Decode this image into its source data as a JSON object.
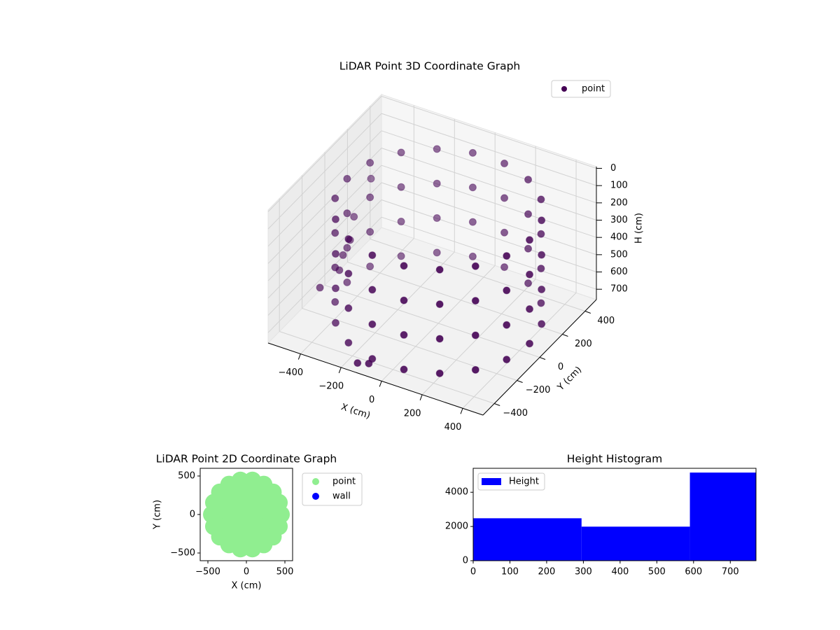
{
  "chart_data": [
    {
      "type": "scatter3d",
      "title": "LiDAR Point 3D Coordinate Graph",
      "xlabel": "X (cm)",
      "ylabel": "Y (cm)",
      "zlabel": "H (cm)",
      "xlim": [
        -560,
        500
      ],
      "ylim": [
        -500,
        500
      ],
      "zlim": [
        760,
        -10
      ],
      "xticks": [
        {
          "value": -400,
          "label": "−400"
        },
        {
          "value": -200,
          "label": "−200"
        },
        0,
        200,
        400
      ],
      "yticks": [
        {
          "value": -400,
          "label": "−400"
        },
        {
          "value": -200,
          "label": "−200"
        },
        0,
        200,
        400
      ],
      "zticks": [
        0,
        100,
        200,
        300,
        400,
        500,
        600,
        700
      ],
      "grid": true,
      "legend": "upper right",
      "series": [
        {
          "name": "point",
          "color": "#440154",
          "x": [
            450,
            423,
            345,
            225,
            78,
            -78,
            -225,
            -345,
            -423,
            -450,
            -423,
            -345,
            -225,
            -78,
            78,
            225,
            345,
            423,
            450,
            423,
            345,
            225,
            78,
            -78,
            -225,
            -345,
            -423,
            -450,
            -423,
            -345,
            -225,
            -78,
            78,
            225,
            345,
            423,
            450,
            423,
            345,
            225,
            78,
            -78,
            -225,
            -345,
            -423,
            -450,
            -423,
            -345,
            -225,
            -78,
            78,
            225,
            345,
            423,
            450,
            423,
            345,
            225,
            78,
            -78,
            -225,
            -345,
            -423,
            -450,
            -423,
            -345,
            -225,
            -78,
            78,
            225,
            345,
            423,
            -500,
            -500,
            -480,
            -470,
            -460,
            -500,
            -130,
            -80
          ],
          "y": [
            0,
            154,
            289,
            390,
            443,
            443,
            390,
            289,
            154,
            0,
            -154,
            -289,
            -390,
            -443,
            -443,
            -390,
            -289,
            -154,
            0,
            154,
            289,
            390,
            443,
            443,
            390,
            289,
            154,
            0,
            -154,
            -289,
            -390,
            -443,
            -443,
            -390,
            -289,
            -154,
            0,
            154,
            289,
            390,
            443,
            443,
            390,
            289,
            154,
            0,
            -154,
            -289,
            -390,
            -443,
            -443,
            -390,
            -289,
            -154,
            0,
            154,
            289,
            390,
            443,
            443,
            390,
            289,
            154,
            0,
            -154,
            -289,
            -390,
            -443,
            -443,
            -390,
            -289,
            -154,
            300,
            150,
            80,
            0,
            -50,
            -150,
            -480,
            -470
          ],
          "z": [
            100,
            100,
            100,
            100,
            100,
            100,
            100,
            100,
            100,
            100,
            100,
            100,
            100,
            100,
            100,
            100,
            100,
            100,
            300,
            300,
            300,
            300,
            300,
            300,
            300,
            300,
            300,
            300,
            300,
            300,
            300,
            300,
            300,
            300,
            300,
            300,
            500,
            500,
            500,
            500,
            500,
            500,
            500,
            500,
            500,
            500,
            500,
            500,
            500,
            500,
            500,
            500,
            500,
            500,
            700,
            700,
            700,
            700,
            700,
            700,
            700,
            700,
            700,
            700,
            700,
            700,
            700,
            700,
            700,
            700,
            700,
            700,
            320,
            440,
            520,
            550,
            600,
            650,
            720,
            710
          ]
        }
      ]
    },
    {
      "type": "scatter",
      "title": "LiDAR Point 2D Coordinate Graph",
      "xlabel": "X (cm)",
      "ylabel": "Y (cm)",
      "xlim": [
        -600,
        600
      ],
      "ylim": [
        -600,
        600
      ],
      "xticks": [
        {
          "value": -500,
          "label": "−500"
        },
        0,
        500
      ],
      "yticks": [
        {
          "value": -500,
          "label": "−500"
        },
        0,
        500
      ],
      "legend": "outside right",
      "series": [
        {
          "name": "point",
          "color": "#90ee90",
          "x": [
            0,
            150,
            75,
            -75,
            -150,
            -75,
            75,
            300,
            260,
            150,
            0,
            -150,
            -260,
            -300,
            -260,
            -150,
            0,
            150,
            260,
            450,
            423,
            345,
            225,
            78,
            -78,
            -225,
            -345,
            -423,
            -450,
            -423,
            -345,
            -225,
            -78,
            78,
            225,
            345,
            423
          ],
          "y": [
            0,
            0,
            130,
            130,
            0,
            -130,
            -130,
            0,
            150,
            260,
            300,
            260,
            150,
            0,
            -150,
            -260,
            -300,
            -260,
            -150,
            0,
            154,
            289,
            390,
            443,
            443,
            390,
            289,
            154,
            0,
            -154,
            -289,
            -390,
            -443,
            -443,
            -390,
            -289,
            -154
          ]
        },
        {
          "name": "wall",
          "color": "#0000ff",
          "x": [],
          "y": []
        }
      ]
    },
    {
      "type": "histogram",
      "title": "Height Histogram",
      "xlim": [
        0,
        770
      ],
      "ylim": [
        0,
        5400
      ],
      "xticks": [
        0,
        100,
        200,
        300,
        400,
        500,
        600,
        700
      ],
      "yticks": [
        0,
        2000,
        4000
      ],
      "legend": "upper left",
      "series": [
        {
          "name": "Height",
          "color": "#0000ff",
          "bins": [
            0,
            295,
            590,
            770
          ],
          "values": [
            2480,
            1990,
            5150
          ]
        }
      ]
    }
  ]
}
